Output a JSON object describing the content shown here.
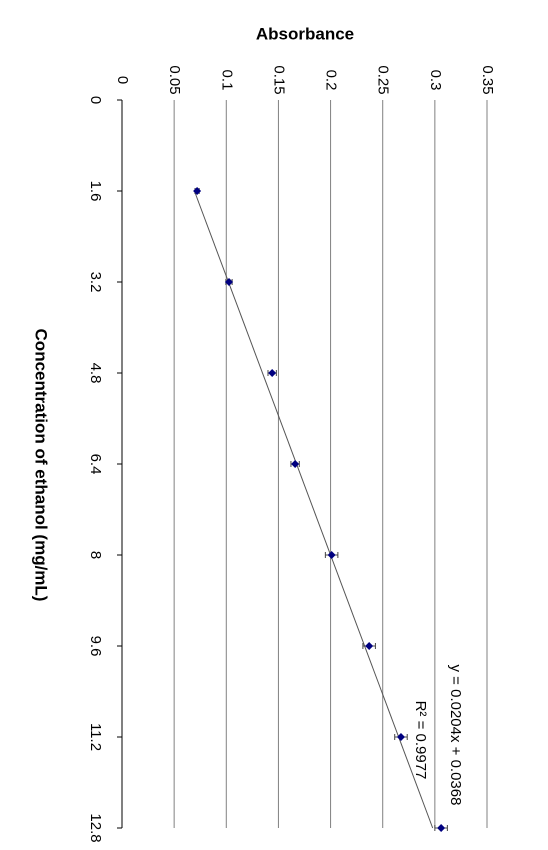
{
  "chart_data": {
    "type": "scatter",
    "title": "Absorbance",
    "x_label": "Concentration of ethanol (mg/mL)",
    "x": [
      1.6,
      3.2,
      4.8,
      6.4,
      8.0,
      9.6,
      11.2,
      12.8
    ],
    "series": [
      {
        "name": "Absorbance",
        "color": "#000080",
        "values": [
          0.072,
          0.1026,
          0.144,
          0.166,
          0.201,
          0.237,
          0.2675,
          0.306
        ],
        "errors": [
          0.002,
          0.003,
          0.004,
          0.004,
          0.006,
          0.006,
          0.006,
          0.006
        ]
      }
    ],
    "trendline": {
      "slope": 0.0204,
      "intercept": 0.0368,
      "color": "#555555"
    },
    "annotations": [
      "y = 0.0204x + 0.0368",
      "R² = 0.9977"
    ],
    "xlim": [
      0,
      12.8
    ],
    "xticks": [
      0,
      1.6,
      3.2,
      4.8,
      6.4,
      8,
      9.6,
      11.2,
      12.8
    ],
    "ylim": [
      0,
      0.35
    ],
    "yticks": [
      0,
      0.05,
      0.1,
      0.15,
      0.2,
      0.25,
      0.3,
      0.35
    ],
    "grid": true
  }
}
